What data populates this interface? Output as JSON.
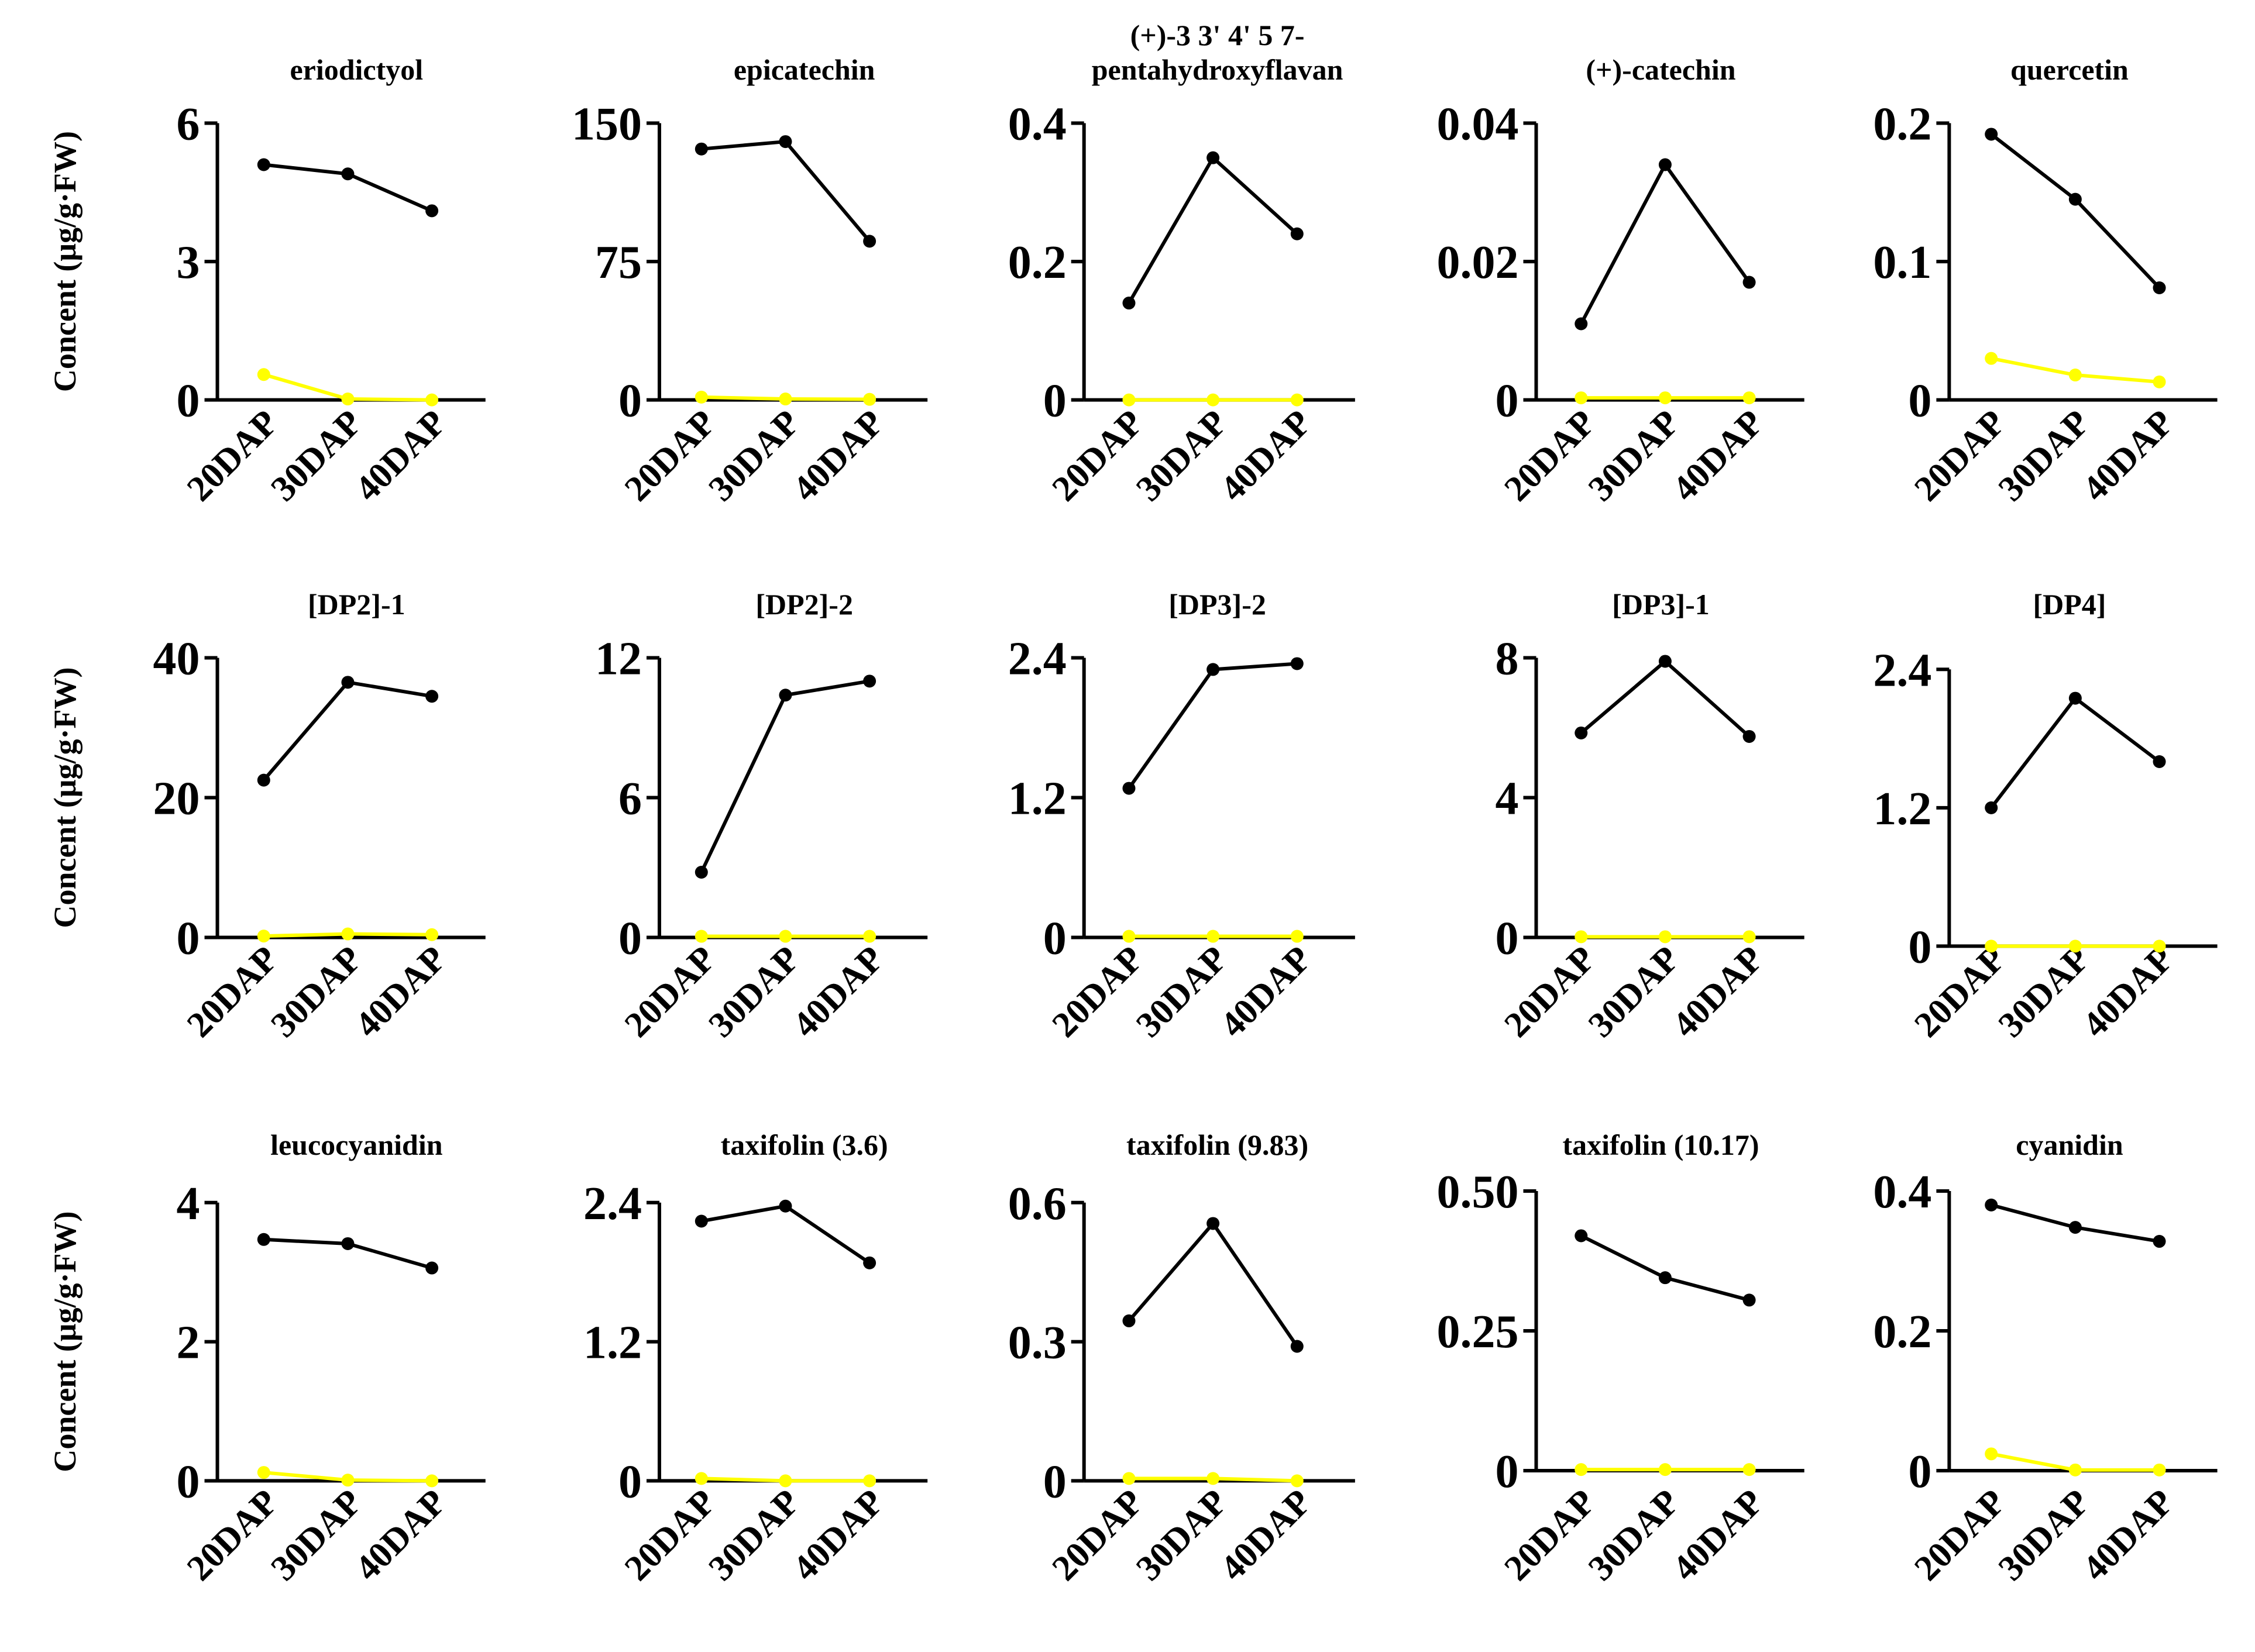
{
  "chart_data": {
    "type": "line",
    "layout": "3x5 small multiples",
    "categories": [
      "20DAP",
      "30DAP",
      "40DAP"
    ],
    "ylabel": "Concent (μg/g·FW)",
    "colors": {
      "series_a": "#000000",
      "series_b": "#ffff00",
      "axis": "#000000"
    },
    "panels": [
      {
        "title": "eriodictyol",
        "ylim": [
          0,
          6
        ],
        "yticks": [
          "0",
          "3",
          "6"
        ],
        "series": [
          {
            "name": "black",
            "color": "#000000",
            "values": [
              5.1,
              4.9,
              4.1
            ]
          },
          {
            "name": "yellow",
            "color": "#ffff00",
            "values": [
              0.55,
              0.02,
              0.0
            ]
          }
        ]
      },
      {
        "title": "epicatechin",
        "ylim": [
          0,
          150
        ],
        "yticks": [
          "0",
          "75",
          "150"
        ],
        "series": [
          {
            "name": "black",
            "color": "#000000",
            "values": [
              136,
              140,
              86
            ]
          },
          {
            "name": "yellow",
            "color": "#ffff00",
            "values": [
              1.5,
              0.5,
              0.3
            ]
          }
        ]
      },
      {
        "title_lines": [
          "(+)-3 3' 4' 5 7-",
          "pentahydroxyflavan"
        ],
        "ylim": [
          0,
          0.4
        ],
        "yticks": [
          "0",
          "0.2",
          "0.4"
        ],
        "series": [
          {
            "name": "black",
            "color": "#000000",
            "values": [
              0.14,
              0.35,
              0.24
            ]
          },
          {
            "name": "yellow",
            "color": "#ffff00",
            "values": [
              0.0,
              0.0,
              0.0
            ]
          }
        ]
      },
      {
        "title": "(+)-catechin",
        "ylim": [
          0,
          0.04
        ],
        "yticks": [
          "0",
          "0.02",
          "0.04"
        ],
        "series": [
          {
            "name": "black",
            "color": "#000000",
            "values": [
              0.011,
              0.034,
              0.017
            ]
          },
          {
            "name": "yellow",
            "color": "#ffff00",
            "values": [
              0.0003,
              0.0003,
              0.0003
            ]
          }
        ]
      },
      {
        "title": "quercetin",
        "ylim": [
          0,
          0.2
        ],
        "yticks": [
          "0",
          "0.1",
          "0.2"
        ],
        "series": [
          {
            "name": "black",
            "color": "#000000",
            "values": [
              0.192,
              0.145,
              0.081
            ]
          },
          {
            "name": "yellow",
            "color": "#ffff00",
            "values": [
              0.03,
              0.018,
              0.013
            ]
          }
        ]
      },
      {
        "title": "[DP2]-1",
        "ylim": [
          0,
          40
        ],
        "yticks": [
          "0",
          "20",
          "40"
        ],
        "series": [
          {
            "name": "black",
            "color": "#000000",
            "values": [
              22.5,
              36.5,
              34.5
            ]
          },
          {
            "name": "yellow",
            "color": "#ffff00",
            "values": [
              0.2,
              0.5,
              0.4
            ]
          }
        ]
      },
      {
        "title": "[DP2]-2",
        "ylim": [
          0,
          12
        ],
        "yticks": [
          "0",
          "6",
          "12"
        ],
        "series": [
          {
            "name": "black",
            "color": "#000000",
            "values": [
              2.8,
              10.4,
              11.0
            ]
          },
          {
            "name": "yellow",
            "color": "#ffff00",
            "values": [
              0.05,
              0.05,
              0.05
            ]
          }
        ]
      },
      {
        "title": "[DP3]-2",
        "ylim": [
          0,
          2.4
        ],
        "yticks": [
          "0",
          "1.2",
          "2.4"
        ],
        "series": [
          {
            "name": "black",
            "color": "#000000",
            "values": [
              1.28,
              2.3,
              2.35
            ]
          },
          {
            "name": "yellow",
            "color": "#ffff00",
            "values": [
              0.01,
              0.01,
              0.01
            ]
          }
        ]
      },
      {
        "title": "[DP3]-1",
        "ylim": [
          0,
          8
        ],
        "yticks": [
          "0",
          "4",
          "8"
        ],
        "series": [
          {
            "name": "black",
            "color": "#000000",
            "values": [
              5.85,
              7.9,
              5.75
            ]
          },
          {
            "name": "yellow",
            "color": "#ffff00",
            "values": [
              0.02,
              0.02,
              0.02
            ]
          }
        ]
      },
      {
        "title": "[DP4]",
        "ylim": [
          0,
          2.4
        ],
        "yticks": [
          "0",
          "1.2",
          "2.4"
        ],
        "series": [
          {
            "name": "black",
            "color": "#000000",
            "values": [
              1.2,
              2.15,
              1.6
            ]
          },
          {
            "name": "yellow",
            "color": "#ffff00",
            "values": [
              0.0,
              0.0,
              0.0
            ]
          }
        ]
      },
      {
        "title": "leucocyanidin",
        "ylim": [
          0,
          4
        ],
        "yticks": [
          "0",
          "2",
          "4"
        ],
        "series": [
          {
            "name": "black",
            "color": "#000000",
            "values": [
              3.47,
              3.41,
              3.06
            ]
          },
          {
            "name": "yellow",
            "color": "#ffff00",
            "values": [
              0.12,
              0.01,
              0.0
            ]
          }
        ]
      },
      {
        "title": "taxifolin (3.6)",
        "ylim": [
          0,
          2.4
        ],
        "yticks": [
          "0",
          "1.2",
          "2.4"
        ],
        "series": [
          {
            "name": "black",
            "color": "#000000",
            "values": [
              2.24,
              2.37,
              1.88
            ]
          },
          {
            "name": "yellow",
            "color": "#ffff00",
            "values": [
              0.02,
              0.0,
              0.0
            ]
          }
        ]
      },
      {
        "title": "taxifolin (9.83)",
        "ylim": [
          0,
          0.6
        ],
        "yticks": [
          "0",
          "0.3",
          "0.6"
        ],
        "series": [
          {
            "name": "black",
            "color": "#000000",
            "values": [
              0.345,
              0.555,
              0.29
            ]
          },
          {
            "name": "yellow",
            "color": "#ffff00",
            "values": [
              0.005,
              0.005,
              0.0
            ]
          }
        ]
      },
      {
        "title": "taxifolin (10.17)",
        "ylim": [
          0,
          0.5
        ],
        "yticks": [
          "0",
          "0.25",
          "0.50"
        ],
        "series": [
          {
            "name": "black",
            "color": "#000000",
            "values": [
              0.42,
              0.345,
              0.305
            ]
          },
          {
            "name": "yellow",
            "color": "#ffff00",
            "values": [
              0.002,
              0.002,
              0.002
            ]
          }
        ]
      },
      {
        "title": "cyanidin",
        "ylim": [
          0,
          0.4
        ],
        "yticks": [
          "0",
          "0.2",
          "0.4"
        ],
        "series": [
          {
            "name": "black",
            "color": "#000000",
            "values": [
              0.38,
              0.348,
              0.328
            ]
          },
          {
            "name": "yellow",
            "color": "#ffff00",
            "values": [
              0.024,
              0.001,
              0.001
            ]
          }
        ]
      }
    ]
  }
}
